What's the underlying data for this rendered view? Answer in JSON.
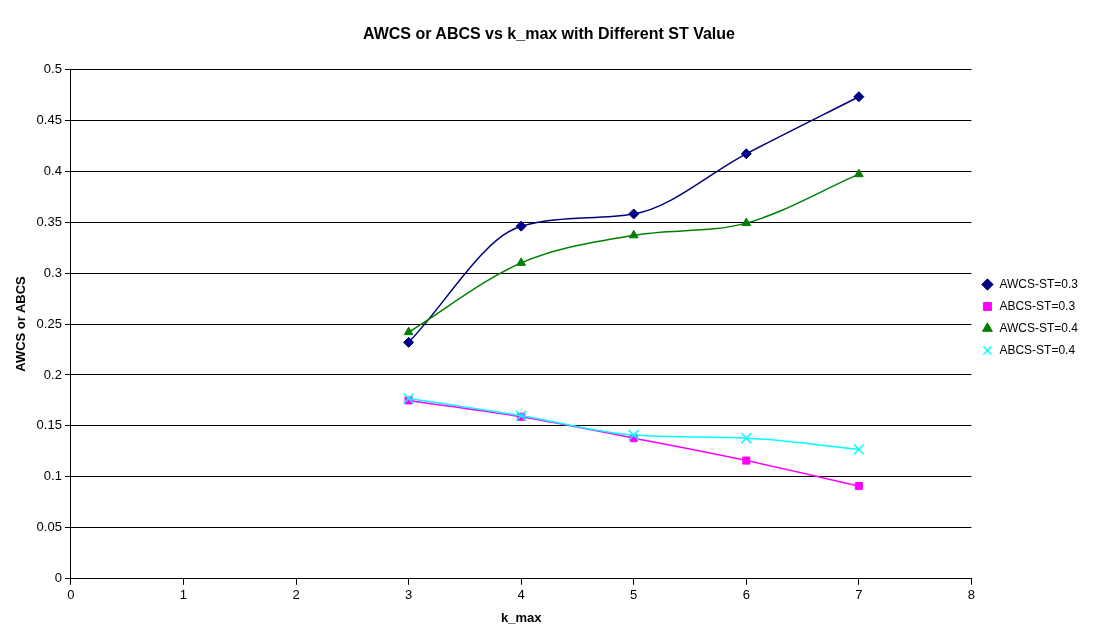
{
  "chart_data": {
    "type": "line",
    "title": "AWCS or ABCS vs k_max with Different ST Value",
    "xlabel": "k_max",
    "ylabel": "AWCS or ABCS",
    "x": [
      3,
      4,
      5,
      6,
      7
    ],
    "xlim": [
      0,
      8
    ],
    "xticks": [
      0,
      1,
      2,
      3,
      4,
      5,
      6,
      7,
      8
    ],
    "ylim": [
      0,
      0.5
    ],
    "yticks": [
      0,
      0.05,
      0.1,
      0.15,
      0.2,
      0.25,
      0.3,
      0.35,
      0.4,
      0.45,
      0.5
    ],
    "grid": "y",
    "legend": "right",
    "series": [
      {
        "name": "AWCS-ST=0.3",
        "color": "#000080",
        "marker": "diamond",
        "values": [
          0.232,
          0.346,
          0.358,
          0.417,
          0.473
        ]
      },
      {
        "name": "ABCS-ST=0.3",
        "color": "#ff00ff",
        "marker": "square",
        "values": [
          0.175,
          0.159,
          0.138,
          0.116,
          0.091
        ]
      },
      {
        "name": "AWCS-ST=0.4",
        "color": "#008000",
        "marker": "triangle",
        "values": [
          0.242,
          0.31,
          0.337,
          0.349,
          0.397
        ]
      },
      {
        "name": "ABCS-ST=0.4",
        "color": "#00ffff",
        "marker": "cross",
        "values": [
          0.177,
          0.16,
          0.141,
          0.138,
          0.127
        ]
      }
    ]
  }
}
